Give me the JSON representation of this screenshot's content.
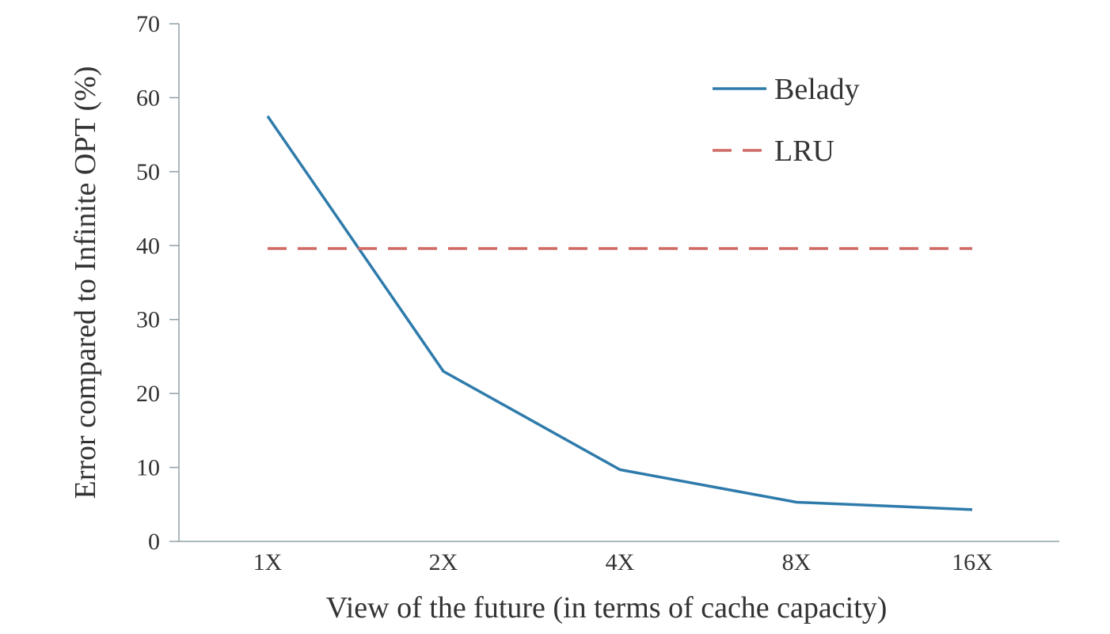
{
  "chart_data": {
    "type": "line",
    "title": "",
    "xlabel": "View of the future (in terms of cache capacity)",
    "ylabel": "Error compared to Infinite OPT  (%)",
    "categories": [
      "1X",
      "2X",
      "4X",
      "8X",
      "16X"
    ],
    "ylim": [
      0,
      70
    ],
    "yticks": [
      0,
      10,
      20,
      30,
      40,
      50,
      60,
      70
    ],
    "grid": false,
    "legend_position": "top-right",
    "series": [
      {
        "name": "Belady",
        "values": [
          57.5,
          23,
          9.7,
          5.3,
          4.3
        ],
        "color": "#2e7bab",
        "style": "solid"
      },
      {
        "name": "LRU",
        "values": [
          39.6,
          39.6,
          39.6,
          39.6,
          39.6
        ],
        "color": "#cf6a64",
        "style": "dashed"
      }
    ]
  }
}
